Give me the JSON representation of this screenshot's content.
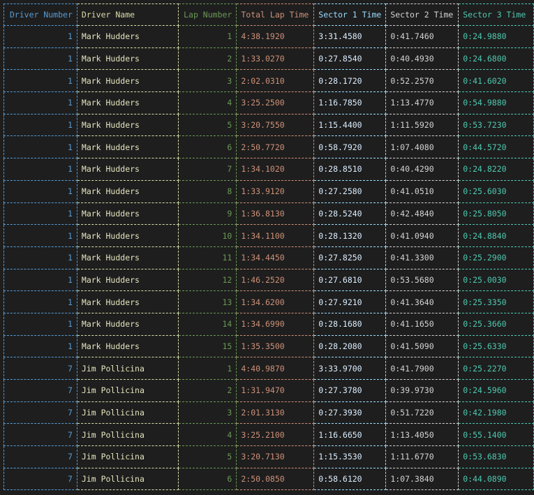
{
  "table": {
    "headers": [
      "Driver Number",
      "Driver Name",
      "Lap Number",
      "Total Lap Time",
      "Sector 1 Time",
      "Sector 2 Time",
      "Sector 3 Time"
    ],
    "rows": [
      [
        "1",
        "Mark Hudders",
        "1",
        "4:38.1920",
        "3:31.4580",
        "0:41.7460",
        "0:24.9880"
      ],
      [
        "1",
        "Mark Hudders",
        "2",
        "1:33.0270",
        "0:27.8540",
        "0:40.4930",
        "0:24.6800"
      ],
      [
        "1",
        "Mark Hudders",
        "3",
        "2:02.0310",
        "0:28.1720",
        "0:52.2570",
        "0:41.6020"
      ],
      [
        "1",
        "Mark Hudders",
        "4",
        "3:25.2500",
        "1:16.7850",
        "1:13.4770",
        "0:54.9880"
      ],
      [
        "1",
        "Mark Hudders",
        "5",
        "3:20.7550",
        "1:15.4400",
        "1:11.5920",
        "0:53.7230"
      ],
      [
        "1",
        "Mark Hudders",
        "6",
        "2:50.7720",
        "0:58.7920",
        "1:07.4080",
        "0:44.5720"
      ],
      [
        "1",
        "Mark Hudders",
        "7",
        "1:34.1020",
        "0:28.8510",
        "0:40.4290",
        "0:24.8220"
      ],
      [
        "1",
        "Mark Hudders",
        "8",
        "1:33.9120",
        "0:27.2580",
        "0:41.0510",
        "0:25.6030"
      ],
      [
        "1",
        "Mark Hudders",
        "9",
        "1:36.8130",
        "0:28.5240",
        "0:42.4840",
        "0:25.8050"
      ],
      [
        "1",
        "Mark Hudders",
        "10",
        "1:34.1100",
        "0:28.1320",
        "0:41.0940",
        "0:24.8840"
      ],
      [
        "1",
        "Mark Hudders",
        "11",
        "1:34.4450",
        "0:27.8250",
        "0:41.3300",
        "0:25.2900"
      ],
      [
        "1",
        "Mark Hudders",
        "12",
        "1:46.2520",
        "0:27.6810",
        "0:53.5680",
        "0:25.0030"
      ],
      [
        "1",
        "Mark Hudders",
        "13",
        "1:34.6200",
        "0:27.9210",
        "0:41.3640",
        "0:25.3350"
      ],
      [
        "1",
        "Mark Hudders",
        "14",
        "1:34.6990",
        "0:28.1680",
        "0:41.1650",
        "0:25.3660"
      ],
      [
        "1",
        "Mark Hudders",
        "15",
        "1:35.3500",
        "0:28.2080",
        "0:41.5090",
        "0:25.6330"
      ],
      [
        "7",
        "Jim Pollicina",
        "1",
        "4:40.9870",
        "3:33.9700",
        "0:41.7900",
        "0:25.2270"
      ],
      [
        "7",
        "Jim Pollicina",
        "2",
        "1:31.9470",
        "0:27.3780",
        "0:39.9730",
        "0:24.5960"
      ],
      [
        "7",
        "Jim Pollicina",
        "3",
        "2:01.3130",
        "0:27.3930",
        "0:51.7220",
        "0:42.1980"
      ],
      [
        "7",
        "Jim Pollicina",
        "4",
        "3:25.2100",
        "1:16.6650",
        "1:13.4050",
        "0:55.1400"
      ],
      [
        "7",
        "Jim Pollicina",
        "5",
        "3:20.7130",
        "1:15.3530",
        "1:11.6770",
        "0:53.6830"
      ],
      [
        "7",
        "Jim Pollicina",
        "6",
        "2:50.0850",
        "0:58.6120",
        "1:07.3840",
        "0:44.0890"
      ]
    ]
  },
  "column_colors": [
    "#569cd6",
    "#dcdcaa",
    "#6a9955",
    "#ce9178",
    "#9cdcfe",
    "#d4d4d4",
    "#4ec9b0"
  ],
  "background_color": "#1e1e1e"
}
